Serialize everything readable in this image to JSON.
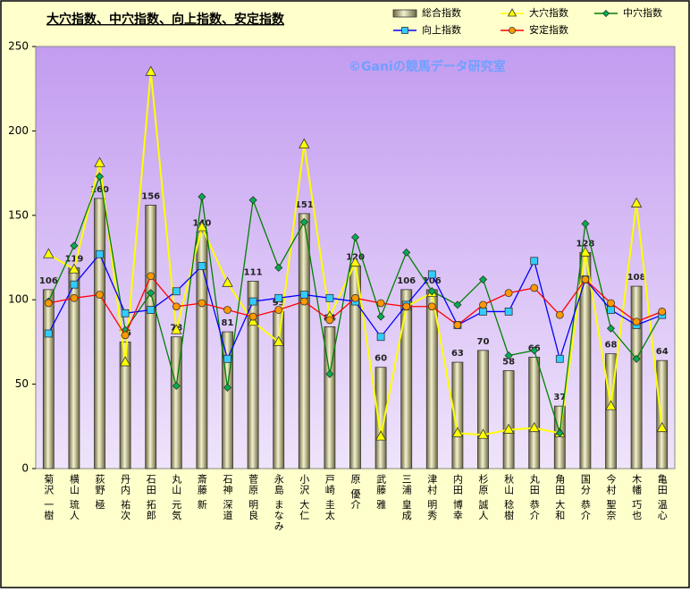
{
  "chart_data": {
    "type": "bar-line",
    "title": "大穴指数、中穴指数、向上指数、安定指数",
    "watermark": "©Ganiの競馬データ研究室",
    "categories": [
      "菊沢 一樹",
      "横山 琉人",
      "荻野 極",
      "丹内 祐次",
      "石田 拓郎",
      "丸山 元気",
      "斎藤 新",
      "石神 深道",
      "菅原 明良",
      "永島 まなみ",
      "小沢 大仁",
      "戸崎 圭太",
      "原 優介",
      "武藤 雅",
      "三浦 皇成",
      "津村 明秀",
      "内田 博幸",
      "杉原 誠人",
      "秋山 稔樹",
      "丸田 恭介",
      "角田 大和",
      "国分 恭介",
      "今村 聖奈",
      "木幡 巧也",
      "亀田 温心"
    ],
    "ylim": [
      0,
      250
    ],
    "yticks": [
      0,
      50,
      100,
      150,
      200,
      250
    ],
    "series": [
      {
        "name": "総合指数",
        "kind": "bar",
        "color": "#d9d49a",
        "values": [
          106,
          119,
          160,
          75,
          156,
          78,
          140,
          81,
          111,
          93,
          151,
          84,
          120,
          60,
          106,
          106,
          63,
          70,
          58,
          66,
          37,
          128,
          68,
          108,
          64
        ]
      },
      {
        "name": "大穴指数",
        "kind": "line",
        "marker": "triangle",
        "color": "#ffff00",
        "marker_color": "#ffff00",
        "values": [
          127,
          118,
          181,
          63,
          235,
          82,
          143,
          110,
          87,
          75,
          192,
          90,
          122,
          19,
          96,
          104,
          21,
          20,
          23,
          24,
          21,
          128,
          37,
          157,
          24
        ]
      },
      {
        "name": "中穴指数",
        "kind": "line",
        "marker": "diamond",
        "color": "#008000",
        "marker_color": "#00b050",
        "values": [
          99,
          132,
          173,
          82,
          104,
          49,
          161,
          48,
          159,
          119,
          146,
          56,
          137,
          90,
          128,
          105,
          97,
          112,
          67,
          70,
          21,
          145,
          83,
          65,
          92
        ]
      },
      {
        "name": "向上指数",
        "kind": "line",
        "marker": "square",
        "color": "#0000ff",
        "marker_color": "#33ccff",
        "values": [
          80,
          109,
          127,
          92,
          94,
          105,
          120,
          65,
          99,
          101,
          103,
          101,
          99,
          78,
          97,
          115,
          85,
          93,
          93,
          123,
          65,
          112,
          94,
          85,
          91
        ]
      },
      {
        "name": "安定指数",
        "kind": "line",
        "marker": "circle",
        "color": "#ff0000",
        "marker_color": "#ff9900",
        "values": [
          98,
          101,
          103,
          79,
          114,
          96,
          98,
          94,
          90,
          94,
          99,
          88,
          101,
          98,
          96,
          96,
          85,
          97,
          104,
          107,
          91,
          112,
          98,
          87,
          93
        ]
      }
    ]
  }
}
